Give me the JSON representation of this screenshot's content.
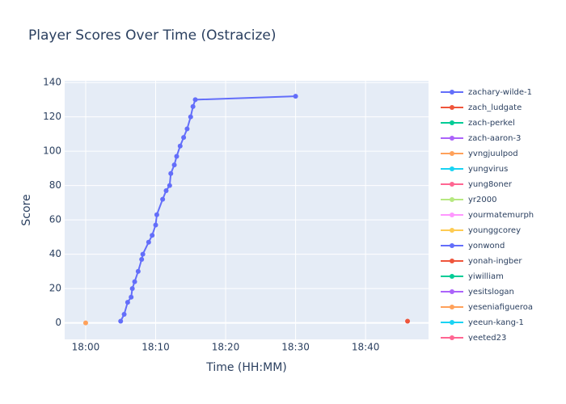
{
  "chart_data": {
    "type": "line",
    "title": "Player Scores Over Time (Ostracize)",
    "x_label": "Time (HH:MM)",
    "y_label": "Score",
    "xlim": [
      "17:57:00",
      "18:49:00"
    ],
    "xticks": [
      "18:00",
      "18:10",
      "18:20",
      "18:30",
      "18:40"
    ],
    "ylim": [
      -9.6,
      141
    ],
    "yticks": [
      0,
      20,
      40,
      60,
      80,
      100,
      120,
      140
    ],
    "grid": true,
    "series": [
      {
        "name": "zachary-wilde-1",
        "color": "#636efa",
        "x": [
          "18:05:00",
          "18:05:30",
          "18:06:00",
          "18:06:30",
          "18:06:40",
          "18:07:00",
          "18:07:30",
          "18:08:00",
          "18:08:10",
          "18:09:00",
          "18:09:30",
          "18:10:00",
          "18:10:10",
          "18:11:00",
          "18:11:30",
          "18:12:00",
          "18:12:10",
          "18:12:40",
          "18:13:00",
          "18:13:30",
          "18:14:00",
          "18:14:30",
          "18:15:00",
          "18:15:20",
          "18:15:40",
          "18:30:00"
        ],
        "values": [
          1,
          5,
          12,
          15,
          20,
          24,
          30,
          37,
          40,
          47,
          51,
          57,
          63,
          72,
          77,
          80,
          87,
          92,
          97,
          103,
          108,
          113,
          120,
          126,
          130,
          132
        ]
      },
      {
        "name": "zach_ludgate",
        "color": "#EF553B",
        "x": [
          "18:46:00"
        ],
        "values": [
          1
        ]
      },
      {
        "name": "zach-perkel",
        "color": "#00cc96",
        "x": [],
        "values": []
      },
      {
        "name": "zach-aaron-3",
        "color": "#ab63fa",
        "x": [],
        "values": []
      },
      {
        "name": "yvngjuulpod",
        "color": "#FFA15A",
        "x": [
          "18:00:00"
        ],
        "values": [
          0
        ]
      },
      {
        "name": "yungvirus",
        "color": "#19d3f3",
        "x": [],
        "values": []
      },
      {
        "name": "yung8oner",
        "color": "#FF6692",
        "x": [],
        "values": []
      },
      {
        "name": "yr2000",
        "color": "#B6E880",
        "x": [],
        "values": []
      },
      {
        "name": "yourmatemurph",
        "color": "#FF97FF",
        "x": [],
        "values": []
      },
      {
        "name": "younggcorey",
        "color": "#FECB52",
        "x": [],
        "values": []
      },
      {
        "name": "yonwond",
        "color": "#636efa",
        "x": [],
        "values": []
      },
      {
        "name": "yonah-ingber",
        "color": "#EF553B",
        "x": [],
        "values": []
      },
      {
        "name": "yiwilliam",
        "color": "#00cc96",
        "x": [],
        "values": []
      },
      {
        "name": "yesitslogan",
        "color": "#ab63fa",
        "x": [],
        "values": []
      },
      {
        "name": "yeseniafigueroa",
        "color": "#FFA15A",
        "x": [],
        "values": []
      },
      {
        "name": "yeeun-kang-1",
        "color": "#19d3f3",
        "x": [],
        "values": []
      },
      {
        "name": "yeeted23",
        "color": "#FF6692",
        "x": [],
        "values": []
      }
    ]
  }
}
